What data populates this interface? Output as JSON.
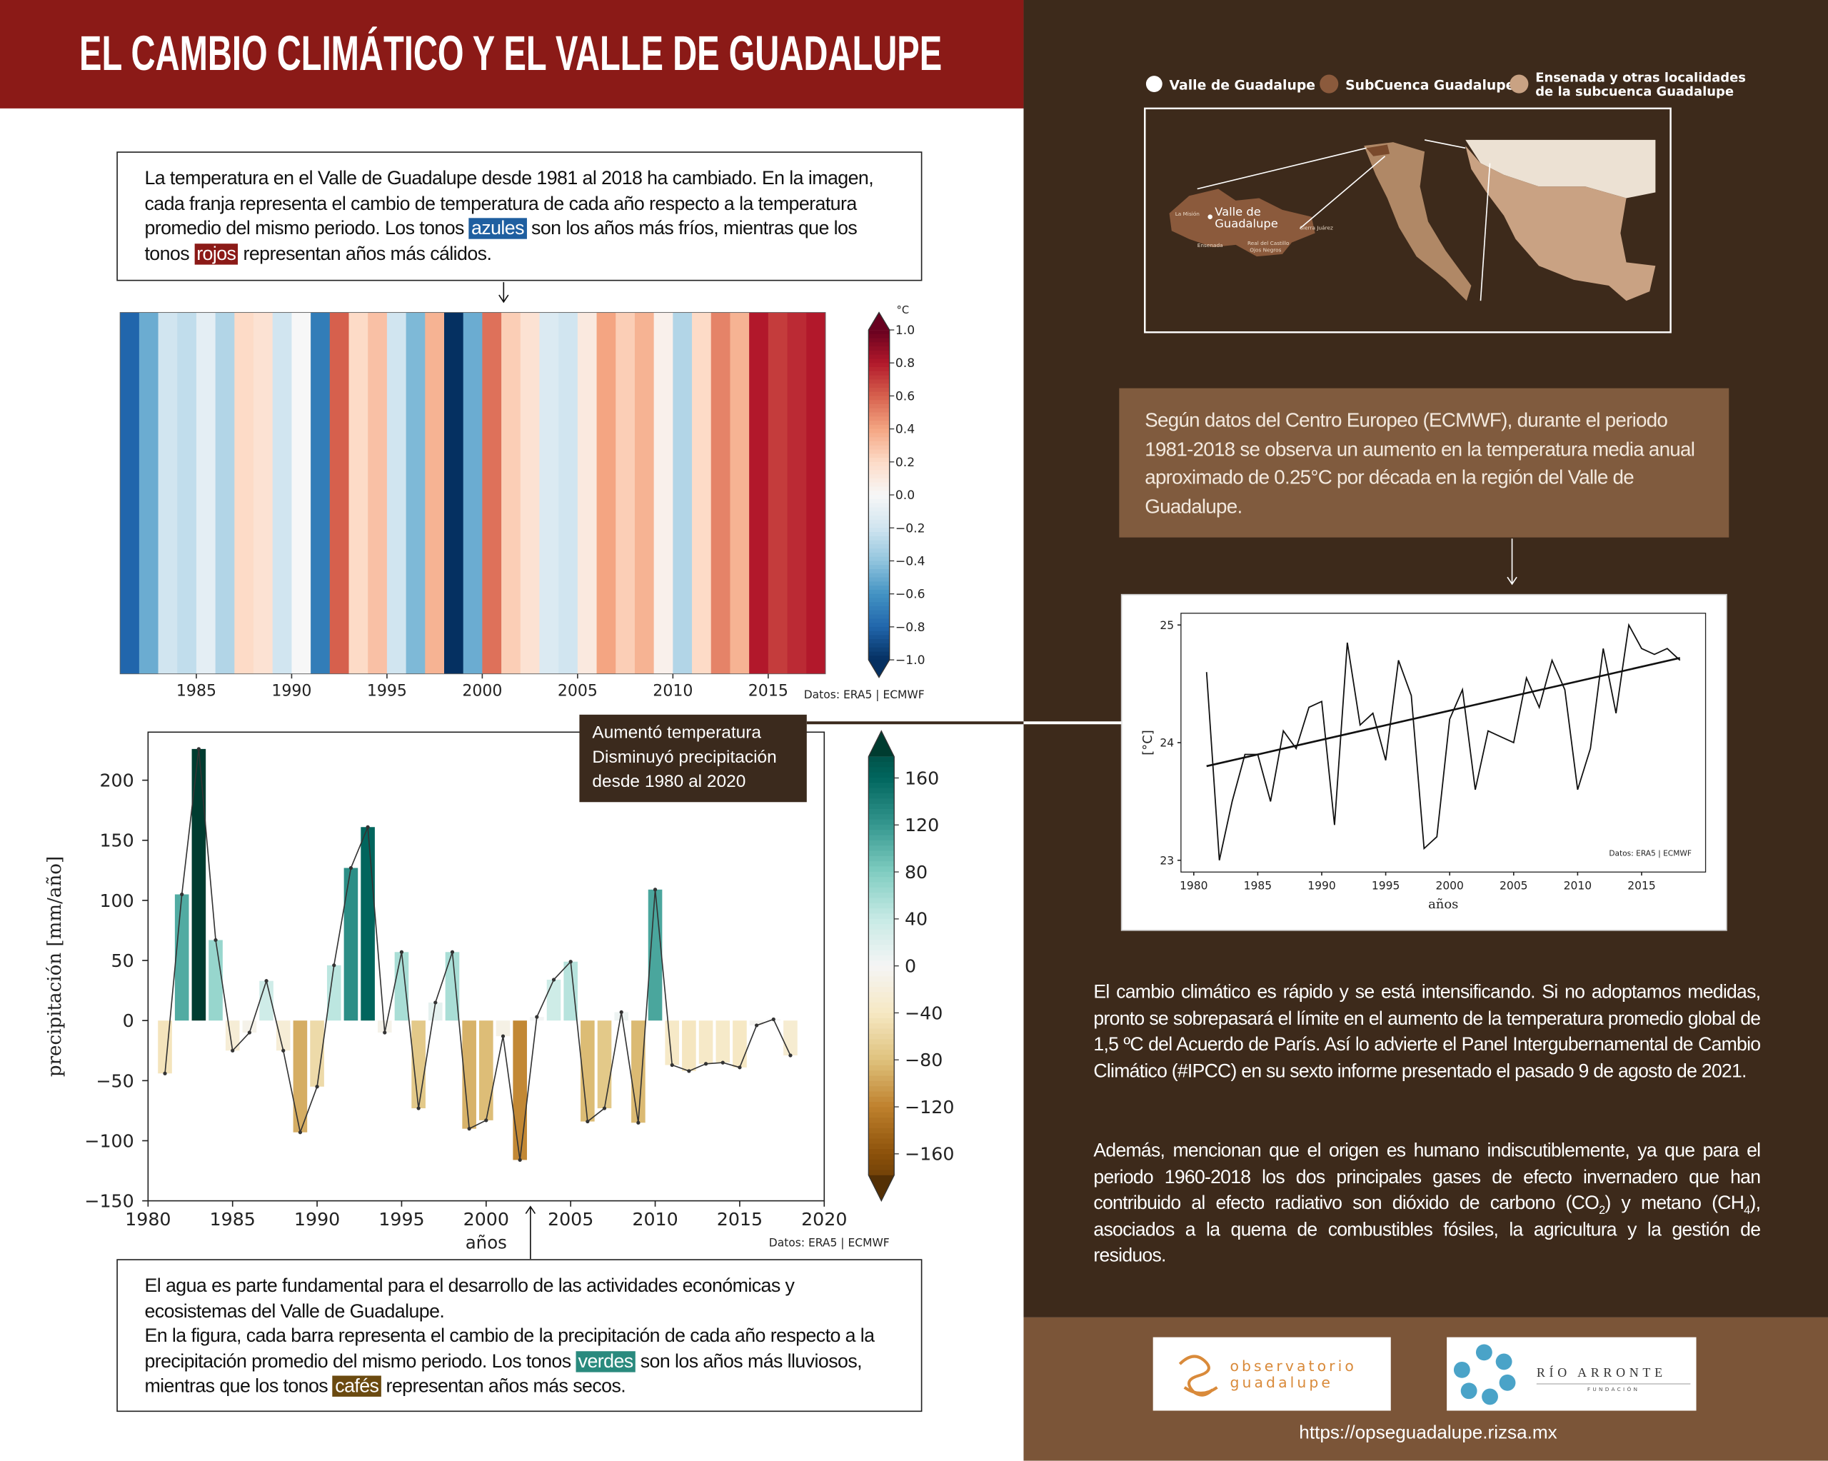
{
  "header": {
    "title": "EL CAMBIO CLIMÁTICO Y EL VALLE DE GUADALUPE"
  },
  "temperature_note": [
    "La temperatura en el Valle de Guadalupe desde 1981 al 2018 ha cambiado. En la imagen, cada franja representa el cambio de temperatura de cada año respecto a la temperatura promedio del mismo periodo. Los tonos ",
    "azules",
    " son los años más fríos, mientras que los tonos ",
    "rojos",
    " representan años más cálidos."
  ],
  "callout": [
    "Aumentó temperatura",
    "Disminuyó precipitación",
    "desde 1980 al 2020"
  ],
  "precipitation_note": [
    "El agua es parte fundamental para el desarrollo de las actividades económicas y ecosistemas del Valle de Guadalupe.",
    "En la figura, cada barra representa el cambio de la precipitación de cada año respecto a la precipitación promedio del mismo periodo. Los tonos ",
    "verdes",
    " son los años más lluviosos, mientras que los tonos ",
    "cafés",
    " representan años más secos."
  ],
  "map": {
    "legend": [
      "Valle de Guadalupe",
      "SubCuenca Guadalupe",
      [
        "Ensenada y otras localidades",
        "de la subcuenca Guadalupe"
      ]
    ],
    "places": {
      "valle": [
        "Valle de",
        "Guadalupe"
      ],
      "others": [
        "La Misión",
        "Ensenada",
        "Real del Castillo",
        "Ojos Negros",
        "Sierra Juárez"
      ]
    }
  },
  "ecmwf_note": "Según datos del Centro Europeo (ECMWF), durante el periodo 1981-2018 se observa un aumento en la temperatura media anual aproximado de 0.25°C por década en la región del Valle de Guadalupe.",
  "ipcc_note": "El cambio climático es rápido y se está intensificando. Si no adoptamos medidas, pronto se sobrepasará el límite en el aumento de la temperatura promedio global de 1,5 ºC del Acuerdo de París.  Así lo advierte el Panel Intergubernamental de Cambio Climático (#IPCC) en su sexto informe presentado el pasado 9 de agosto de 2021.",
  "ghg_note": [
    "Además, mencionan que el origen es humano indiscutiblemente, ya que para el periodo 1960-2018 los dos principales gases de efecto invernadero que han contribuido al efecto radiativo son dióxido de carbono (CO",
    "2",
    ") y metano (CH",
    "4",
    "), asociados a la quema de combustibles fósiles, la agricultura y la gestión de residuos."
  ],
  "footer": {
    "logos": [
      "observatorio",
      "guadalupe",
      "RÍO ARRONTE",
      "FUNDACIÓN"
    ],
    "url": "https://opseguadalupe.rizsa.mx"
  },
  "chart_data": [
    {
      "type": "stripes",
      "x": [
        1981,
        1982,
        1983,
        1984,
        1985,
        1986,
        1987,
        1988,
        1989,
        1990,
        1991,
        1992,
        1993,
        1994,
        1995,
        1996,
        1997,
        1998,
        1999,
        2000,
        2001,
        2002,
        2003,
        2004,
        2005,
        2006,
        2007,
        2008,
        2009,
        2010,
        2011,
        2012,
        2013,
        2014,
        2015,
        2016,
        2017
      ],
      "values": [
        -0.8,
        -0.5,
        -0.2,
        -0.25,
        -0.1,
        -0.3,
        0.2,
        0.15,
        -0.2,
        0,
        -0.7,
        0.6,
        0.2,
        0.3,
        -0.2,
        -0.45,
        0.35,
        -1.0,
        -0.5,
        0.55,
        0.25,
        0.15,
        -0.15,
        -0.2,
        0.1,
        0.4,
        0.25,
        0.35,
        0.05,
        -0.3,
        0.2,
        0.5,
        0.35,
        0.8,
        0.7,
        0.75,
        0.8
      ],
      "xlim": [
        1981,
        2018
      ],
      "xticks": [
        1985,
        1990,
        1995,
        2000,
        2005,
        2010,
        2015
      ],
      "colormap": [
        "#053061",
        "#2166ac",
        "#4393c3",
        "#92c5de",
        "#d1e5f0",
        "#f7f7f7",
        "#fddbc7",
        "#f4a582",
        "#d6604d",
        "#b2182b",
        "#67001f"
      ],
      "clim": [
        -1,
        1
      ],
      "cticks": [
        {
          "value": -1,
          "label": "−1.0"
        },
        {
          "value": -0.8,
          "label": "−0.8"
        },
        {
          "value": -0.6,
          "label": "−0.6"
        },
        {
          "value": -0.4,
          "label": "−0.4"
        },
        {
          "value": -0.2,
          "label": "−0.2"
        },
        {
          "value": 0,
          "label": "0.0"
        },
        {
          "value": 0.2,
          "label": "0.2"
        },
        {
          "value": 0.4,
          "label": "0.4"
        },
        {
          "value": 0.6,
          "label": "0.6"
        },
        {
          "value": 0.8,
          "label": "0.8"
        },
        {
          "value": 1,
          "label": "1.0"
        }
      ],
      "clabel": "°C",
      "source": "Datos: ERA5 | ECMWF"
    },
    {
      "type": "bar",
      "x": [
        1981,
        1982,
        1983,
        1984,
        1985,
        1986,
        1987,
        1988,
        1989,
        1990,
        1991,
        1992,
        1993,
        1994,
        1995,
        1996,
        1997,
        1998,
        1999,
        2000,
        2001,
        2002,
        2003,
        2004,
        2005,
        2006,
        2007,
        2008,
        2009,
        2010,
        2011,
        2012,
        2013,
        2014,
        2015,
        2016,
        2017,
        2018
      ],
      "values": [
        -44,
        105,
        226,
        67,
        -25,
        -10,
        33,
        -25,
        -93,
        -55,
        46,
        127,
        161,
        -10,
        57,
        -73,
        15,
        57,
        -90,
        -83,
        -13,
        -116,
        3,
        34,
        49,
        -84,
        -73,
        7,
        -85,
        109,
        -37,
        -42,
        -36,
        -35,
        -39,
        -4,
        1,
        -29
      ],
      "line_color": "#333333",
      "xlim": [
        1980,
        2020
      ],
      "xticks": [
        1980,
        1985,
        1990,
        1995,
        2000,
        2005,
        2010,
        2015,
        2020
      ],
      "ylim": [
        -150,
        240
      ],
      "yticks": [
        {
          "value": -150,
          "label": "−150"
        },
        {
          "value": -100,
          "label": "−100"
        },
        {
          "value": -50,
          "label": "−50"
        },
        0,
        50,
        100,
        150,
        200
      ],
      "xlabel": "años",
      "ylabel": "precipitación [mm/año]",
      "colormap": [
        "#543005",
        "#8c510a",
        "#bf812d",
        "#dfc27d",
        "#f6e8c3",
        "#f5f5f5",
        "#c7eae5",
        "#80cdc1",
        "#35978f",
        "#01665e",
        "#003c30"
      ],
      "clim": [
        -200,
        200
      ],
      "cticks": [
        {
          "value": -160,
          "label": "−160"
        },
        {
          "value": -120,
          "label": "−120"
        },
        {
          "value": -80,
          "label": "−80"
        },
        {
          "value": -40,
          "label": "−40"
        },
        0,
        40,
        80,
        120,
        160
      ],
      "source": "Datos: ERA5 | ECMWF"
    },
    {
      "type": "line",
      "x": [
        1981,
        1982,
        1983,
        1984,
        1985,
        1986,
        1987,
        1988,
        1989,
        1990,
        1991,
        1992,
        1993,
        1994,
        1995,
        1996,
        1997,
        1998,
        1999,
        2000,
        2001,
        2002,
        2003,
        2004,
        2005,
        2006,
        2007,
        2008,
        2009,
        2010,
        2011,
        2012,
        2013,
        2014,
        2015,
        2016,
        2017,
        2018
      ],
      "series": [
        {
          "color": "#111111",
          "values": [
            24.6,
            23.0,
            23.5,
            23.9,
            23.9,
            23.5,
            24.1,
            23.95,
            24.3,
            24.35,
            23.3,
            24.85,
            24.15,
            24.25,
            23.85,
            24.7,
            24.4,
            23.1,
            23.2,
            24.2,
            24.45,
            23.6,
            24.1,
            24.05,
            24.0,
            24.55,
            24.3,
            24.7,
            24.45,
            23.6,
            23.95,
            24.8,
            24.25,
            25.0,
            24.8,
            24.75,
            24.8,
            24.7
          ]
        },
        {
          "color": "#111111",
          "x": [
            1981,
            2018
          ],
          "values": [
            23.8,
            24.72
          ]
        }
      ],
      "xlim": [
        1979,
        2020
      ],
      "xticks": [
        1980,
        1985,
        1990,
        1995,
        2000,
        2005,
        2010,
        2015
      ],
      "ylim": [
        22.9,
        25.1
      ],
      "yticks": [
        23,
        24,
        25
      ],
      "xlabel": "años",
      "ylabel": "[°C]",
      "source": "Datos: ERA5 | ECMWF"
    }
  ]
}
